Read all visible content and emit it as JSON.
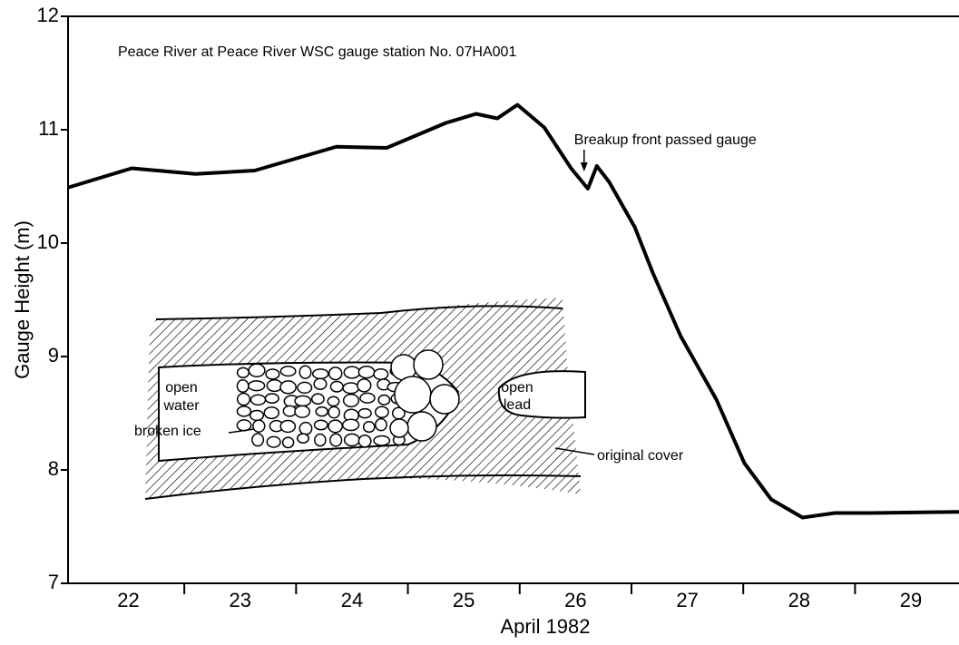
{
  "chart_data": {
    "type": "line",
    "title": "Peace River at Peace River WSC gauge station No. 07HA001",
    "x_label": "April 1982",
    "y_label": "Gauge Height (m)",
    "xlim": [
      21.96,
      29.93
    ],
    "ylim": [
      7,
      12
    ],
    "yticks": [
      7,
      8,
      9,
      10,
      11,
      12
    ],
    "xticks": [
      {
        "value": 22.5,
        "label": "22"
      },
      {
        "value": 23.5,
        "label": "23"
      },
      {
        "value": 24.5,
        "label": "24"
      },
      {
        "value": 25.5,
        "label": "25"
      },
      {
        "value": 26.5,
        "label": "26"
      },
      {
        "value": 27.5,
        "label": "27"
      },
      {
        "value": 28.5,
        "label": "28"
      },
      {
        "value": 29.5,
        "label": "29"
      }
    ],
    "x_minor_ticks": [
      23,
      24,
      25,
      26,
      27,
      28,
      29
    ],
    "series": [
      {
        "color": "#000000",
        "x": [
          21.96,
          22.53,
          23.1,
          23.63,
          24.36,
          24.81,
          25.34,
          25.61,
          25.8,
          25.98,
          26.22,
          26.46,
          26.61,
          26.69,
          26.8,
          27.03,
          27.19,
          27.44,
          27.76,
          28.01,
          28.25,
          28.53,
          28.82,
          29.14,
          29.93
        ],
        "values": [
          10.49,
          10.66,
          10.61,
          10.64,
          10.85,
          10.84,
          11.06,
          11.14,
          11.1,
          11.22,
          11.02,
          10.66,
          10.48,
          10.68,
          10.54,
          10.14,
          9.74,
          9.18,
          8.62,
          8.06,
          7.74,
          7.58,
          7.62,
          7.62,
          7.63
        ]
      }
    ],
    "annotations": [
      {
        "text": "Breakup front passed gauge",
        "x": 26.69,
        "y": 10.68
      }
    ],
    "inset_labels": {
      "open_water": [
        "open",
        "water"
      ],
      "broken_ice": "broken ice",
      "open_lead": [
        "open",
        "lead"
      ],
      "original_cover": "original cover"
    }
  }
}
